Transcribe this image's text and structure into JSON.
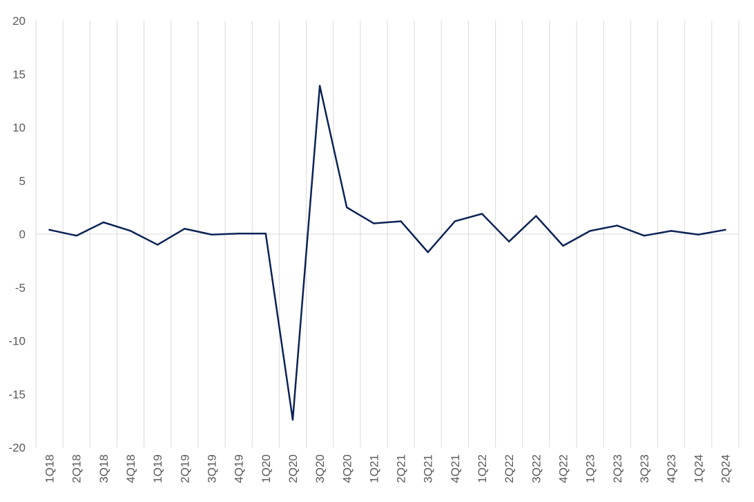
{
  "chart_data": {
    "type": "line",
    "title": "",
    "xlabel": "",
    "ylabel": "",
    "categories": [
      "1Q18",
      "2Q18",
      "3Q18",
      "4Q18",
      "1Q19",
      "2Q19",
      "3Q19",
      "4Q19",
      "1Q20",
      "2Q20",
      "3Q20",
      "4Q20",
      "1Q21",
      "2Q21",
      "3Q21",
      "4Q21",
      "1Q22",
      "2Q22",
      "3Q22",
      "4Q22",
      "1Q23",
      "2Q23",
      "3Q23",
      "4Q23",
      "1Q24",
      "2Q24"
    ],
    "series": [
      {
        "values": [
          0.4,
          -0.15,
          1.1,
          0.3,
          -1.0,
          0.5,
          -0.05,
          0.05,
          0.05,
          -17.4,
          13.9,
          2.5,
          1.0,
          1.2,
          -1.7,
          1.2,
          1.9,
          -0.7,
          1.7,
          -1.1,
          0.3,
          0.8,
          -0.15,
          0.3,
          -0.05,
          0.4
        ],
        "color": "#0b2255"
      }
    ],
    "ylim": [
      -20,
      20
    ],
    "yticks": [
      -20,
      -15,
      -10,
      -5,
      0,
      5,
      10,
      15,
      20
    ],
    "grid": "vertical lines between categories",
    "legend": "none"
  }
}
